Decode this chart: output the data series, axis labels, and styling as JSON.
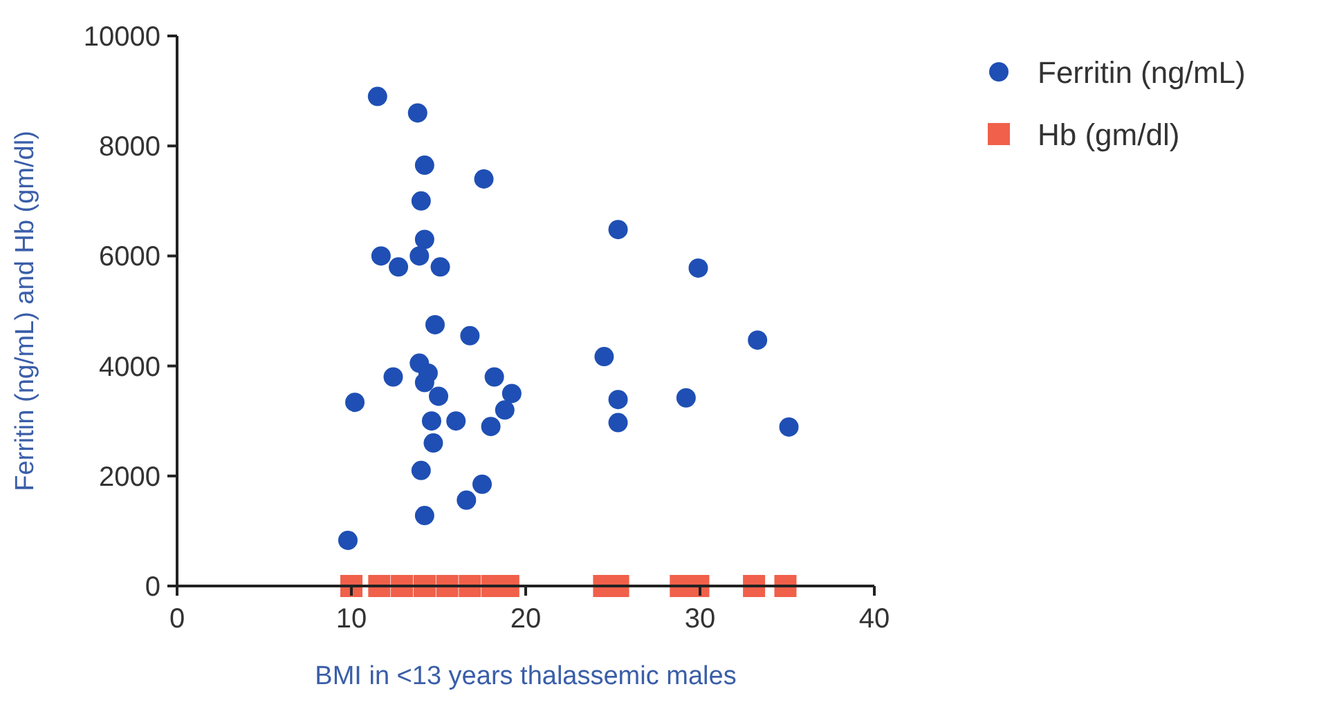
{
  "chart_data": {
    "type": "scatter",
    "xlabel": "BMI in <13 years thalassemic males",
    "ylabel": "Ferritin (ng/mL) and Hb (gm/dl)",
    "xlim": [
      0,
      40
    ],
    "xticks": [
      0,
      10,
      20,
      30,
      40
    ],
    "ylim": [
      0,
      10000
    ],
    "yticks": [
      0,
      2000,
      4000,
      6000,
      8000,
      10000
    ],
    "grid": false,
    "legend": "top right",
    "series": [
      {
        "name": "Ferritin (ng/mL)",
        "color": "#1f4fb4",
        "marker": "circle",
        "x": [
          9.8,
          10.2,
          11.5,
          13.8,
          11.7,
          12.7,
          14.2,
          14.0,
          14.2,
          17.6,
          13.9,
          15.1,
          14.8,
          16.8,
          12.4,
          13.9,
          14.4,
          14.2,
          15.0,
          18.2,
          19.2,
          18.8,
          18.0,
          14.6,
          16.0,
          14.7,
          14.0,
          17.5,
          16.6,
          14.2,
          25.3,
          29.9,
          24.5,
          33.3,
          25.3,
          25.3,
          29.2,
          35.1
        ],
        "values": [
          830,
          3340,
          8900,
          8600,
          6000,
          5800,
          7650,
          7000,
          6300,
          7400,
          6000,
          5800,
          4750,
          4550,
          3800,
          4050,
          3870,
          3700,
          3450,
          3800,
          3500,
          3200,
          2900,
          3000,
          3000,
          2600,
          2100,
          1850,
          1560,
          1280,
          6480,
          5780,
          4170,
          4470,
          3390,
          2970,
          3420,
          2890
        ]
      },
      {
        "name": "Hb (gm/dl)",
        "color": "#f0604a",
        "marker": "square",
        "x": [
          10.0,
          11.6,
          12.9,
          14.2,
          15.5,
          16.8,
          18.1,
          19.0,
          24.5,
          25.3,
          28.9,
          29.9,
          33.1,
          34.9
        ],
        "values": [
          0,
          0,
          0,
          0,
          0,
          0,
          0,
          0,
          0,
          0,
          0,
          0,
          0,
          0
        ]
      }
    ]
  }
}
